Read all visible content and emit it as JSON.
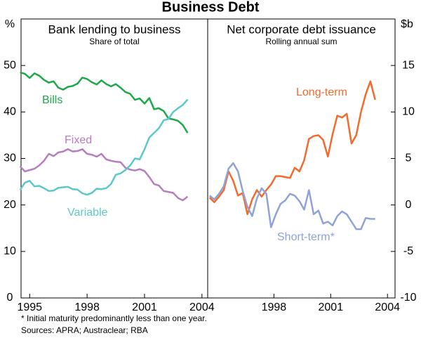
{
  "title": "Business Debt",
  "footnote": "* Initial maturity predominantly less than one year.",
  "sources": "Sources: APRA; Austraclear; RBA",
  "chart_data": [
    {
      "type": "line",
      "title": "Bank lending to business",
      "subtitle": "Share of total",
      "y_unit": "%",
      "xlim": [
        1994.55,
        2004.3
      ],
      "xticks": [
        1995,
        1998,
        2001,
        2004
      ],
      "ylim": [
        0,
        60
      ],
      "yticks": [
        0,
        10,
        20,
        30,
        40,
        50
      ],
      "x": [
        1994.5,
        1994.75,
        1995,
        1995.25,
        1995.5,
        1995.75,
        1996,
        1996.25,
        1996.5,
        1996.75,
        1997,
        1997.25,
        1997.5,
        1997.75,
        1998,
        1998.25,
        1998.5,
        1998.75,
        1999,
        1999.25,
        1999.5,
        1999.75,
        2000,
        2000.25,
        2000.5,
        2000.75,
        2001,
        2001.25,
        2001.5,
        2001.75,
        2002,
        2002.25,
        2002.5,
        2002.75,
        2003,
        2003.25
      ],
      "series": [
        {
          "name": "Bills",
          "color": "#1fa84a",
          "values": [
            48.5,
            48.2,
            47.3,
            48.3,
            47.8,
            46.9,
            46.3,
            46.6,
            45.2,
            44.8,
            45.4,
            45.6,
            46.1,
            47.4,
            47.1,
            46.4,
            45.9,
            46.8,
            46.0,
            45.5,
            46.0,
            45.2,
            44.3,
            43.9,
            42.6,
            42.9,
            41.8,
            43.0,
            40.6,
            40.8,
            40.2,
            38.6,
            38.4,
            38.1,
            37.2,
            35.5
          ]
        },
        {
          "name": "Fixed",
          "color": "#b87cc0",
          "values": [
            28.3,
            27.2,
            27.5,
            27.8,
            28.5,
            29.5,
            31,
            30.5,
            31.3,
            31.5,
            32,
            31.5,
            31.6,
            32,
            31,
            30.8,
            30.4,
            31,
            29.8,
            29.5,
            29.3,
            29.2,
            28,
            27.6,
            27.4,
            27.7,
            27.3,
            26,
            24.5,
            24.2,
            23,
            22.8,
            22.6,
            21.5,
            21,
            21.8
          ]
        },
        {
          "name": "Variable",
          "color": "#5cc8c8",
          "values": [
            23.2,
            24.8,
            25.2,
            24.0,
            24.1,
            23.6,
            23.0,
            23.1,
            23.7,
            23.8,
            23.9,
            23.4,
            23.3,
            22.5,
            22.2,
            22.6,
            23.5,
            23.4,
            23.6,
            24.5,
            26.5,
            26.8,
            27.5,
            28.5,
            30.0,
            29.8,
            32.0,
            34.5,
            35.5,
            36.5,
            38.2,
            38.5,
            40.0,
            40.8,
            41.5,
            42.7
          ]
        }
      ]
    },
    {
      "type": "line",
      "title": "Net corporate debt issuance",
      "subtitle": "Rolling annual sum",
      "y_unit": "$b",
      "xlim": [
        1994.5,
        2004.4
      ],
      "xticks": [
        1998,
        2001,
        2004
      ],
      "ylim": [
        -10,
        20
      ],
      "yticks": [
        -10,
        -5,
        0,
        5,
        10,
        15
      ],
      "x": [
        1994.6,
        1994.85,
        1995.1,
        1995.35,
        1995.6,
        1995.85,
        1996.1,
        1996.35,
        1996.6,
        1996.85,
        1997.1,
        1997.35,
        1997.6,
        1997.85,
        1998.1,
        1998.35,
        1998.6,
        1998.85,
        1999.1,
        1999.35,
        1999.6,
        1999.85,
        2000.1,
        2000.35,
        2000.6,
        2000.85,
        2001.1,
        2001.35,
        2001.6,
        2001.85,
        2002.1,
        2002.35,
        2002.6,
        2002.85,
        2003.1,
        2003.35
      ],
      "series": [
        {
          "name": "Long-term",
          "color": "#f26b2d",
          "values": [
            0.8,
            0.3,
            0.9,
            1.6,
            3.6,
            2.6,
            1.0,
            1.3,
            -1.0,
            0.6,
            1.6,
            0.9,
            1.6,
            2.2,
            3.1,
            3.1,
            3.0,
            2.9,
            4.0,
            3.6,
            4.8,
            7.1,
            7.4,
            7.5,
            7.0,
            5.2,
            7.6,
            9.6,
            9.4,
            9.8,
            6.6,
            7.5,
            10.0,
            11.9,
            13.3,
            11.3
          ]
        },
        {
          "name": "Short-term*",
          "color": "#8fa3d8",
          "values": [
            1.0,
            0.6,
            1.2,
            2.0,
            3.9,
            4.5,
            3.6,
            1.5,
            -0.2,
            -1.2,
            0.7,
            1.8,
            1.2,
            -2.4,
            -1.0,
            0.1,
            0.5,
            1.2,
            1.0,
            0.4,
            -0.5,
            1.6,
            -1.0,
            -0.6,
            -2.0,
            -1.8,
            -2.2,
            -1.2,
            -0.7,
            -1.0,
            -1.8,
            -2.6,
            -2.6,
            -1.4,
            -1.5,
            -1.5
          ]
        }
      ]
    }
  ]
}
